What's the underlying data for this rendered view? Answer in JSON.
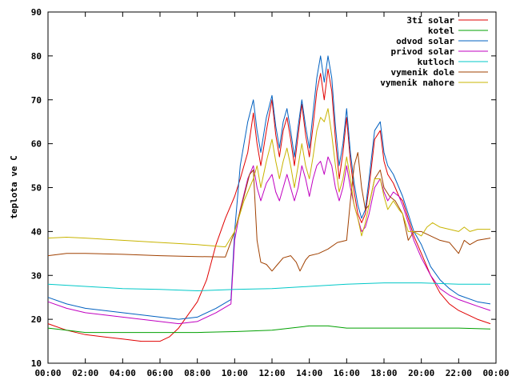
{
  "chart_data": {
    "type": "line",
    "ylabel": "teplota ve C",
    "xlabel": "",
    "title": "",
    "xlim": [
      0,
      24
    ],
    "ylim": [
      10,
      90
    ],
    "x_ticks": [
      "00:00",
      "02:00",
      "04:00",
      "06:00",
      "08:00",
      "10:00",
      "12:00",
      "14:00",
      "16:00",
      "18:00",
      "20:00",
      "22:00",
      "00:00"
    ],
    "y_ticks": [
      "10",
      "20",
      "30",
      "40",
      "50",
      "60",
      "70",
      "80",
      "90"
    ],
    "grid": false,
    "legend_position": "top-right",
    "series": [
      {
        "name": "3ti solar",
        "color": "#e00000",
        "points": [
          [
            0,
            19
          ],
          [
            1,
            17.5
          ],
          [
            2,
            16.5
          ],
          [
            3,
            16
          ],
          [
            4,
            15.5
          ],
          [
            5,
            15
          ],
          [
            6,
            15
          ],
          [
            6.5,
            16
          ],
          [
            7,
            18
          ],
          [
            7.5,
            21
          ],
          [
            8,
            24
          ],
          [
            8.5,
            29
          ],
          [
            9,
            37
          ],
          [
            9.5,
            43
          ],
          [
            10,
            48
          ],
          [
            10.3,
            52
          ],
          [
            10.7,
            58
          ],
          [
            11,
            67
          ],
          [
            11.2,
            60
          ],
          [
            11.4,
            55
          ],
          [
            11.7,
            63
          ],
          [
            12,
            70
          ],
          [
            12.2,
            62
          ],
          [
            12.4,
            57
          ],
          [
            12.6,
            63
          ],
          [
            12.8,
            66
          ],
          [
            13,
            61
          ],
          [
            13.2,
            55
          ],
          [
            13.4,
            62
          ],
          [
            13.6,
            69
          ],
          [
            13.8,
            62
          ],
          [
            14,
            57
          ],
          [
            14.2,
            64
          ],
          [
            14.4,
            72
          ],
          [
            14.6,
            76
          ],
          [
            14.8,
            70
          ],
          [
            15,
            77
          ],
          [
            15.2,
            72
          ],
          [
            15.4,
            61
          ],
          [
            15.6,
            52
          ],
          [
            15.8,
            58
          ],
          [
            16,
            66
          ],
          [
            16.2,
            56
          ],
          [
            16.4,
            49
          ],
          [
            16.6,
            44
          ],
          [
            16.8,
            42
          ],
          [
            17,
            44
          ],
          [
            17.2,
            50
          ],
          [
            17.5,
            61
          ],
          [
            17.8,
            63
          ],
          [
            18,
            56
          ],
          [
            18.2,
            53
          ],
          [
            18.5,
            51
          ],
          [
            18.8,
            48
          ],
          [
            19,
            47
          ],
          [
            19.3,
            43
          ],
          [
            19.6,
            39
          ],
          [
            20,
            35
          ],
          [
            20.5,
            30
          ],
          [
            21,
            26
          ],
          [
            21.5,
            23.5
          ],
          [
            22,
            22
          ],
          [
            23,
            20
          ],
          [
            23.7,
            19
          ]
        ]
      },
      {
        "name": "kotel",
        "color": "#00a000",
        "points": [
          [
            0,
            18
          ],
          [
            1,
            17.5
          ],
          [
            2,
            17
          ],
          [
            4,
            17
          ],
          [
            6,
            17
          ],
          [
            8,
            17
          ],
          [
            10,
            17.2
          ],
          [
            12,
            17.5
          ],
          [
            13,
            18
          ],
          [
            14,
            18.5
          ],
          [
            15,
            18.5
          ],
          [
            16,
            18
          ],
          [
            18,
            18
          ],
          [
            20,
            18
          ],
          [
            22,
            18
          ],
          [
            23.7,
            17.8
          ]
        ]
      },
      {
        "name": "odvod solar",
        "color": "#0060c0",
        "points": [
          [
            0,
            25
          ],
          [
            1,
            23.5
          ],
          [
            2,
            22.5
          ],
          [
            3,
            22
          ],
          [
            4,
            21.5
          ],
          [
            5,
            21
          ],
          [
            6,
            20.5
          ],
          [
            7,
            20
          ],
          [
            8,
            20.5
          ],
          [
            9,
            22.5
          ],
          [
            9.8,
            24.5
          ],
          [
            10,
            40
          ],
          [
            10.3,
            55
          ],
          [
            10.7,
            65
          ],
          [
            11,
            70
          ],
          [
            11.2,
            63
          ],
          [
            11.4,
            58
          ],
          [
            11.7,
            66
          ],
          [
            12,
            71
          ],
          [
            12.2,
            64
          ],
          [
            12.4,
            59
          ],
          [
            12.6,
            65
          ],
          [
            12.8,
            68
          ],
          [
            13,
            63
          ],
          [
            13.2,
            57
          ],
          [
            13.4,
            64
          ],
          [
            13.6,
            70
          ],
          [
            13.8,
            64
          ],
          [
            14,
            59
          ],
          [
            14.2,
            67
          ],
          [
            14.4,
            75
          ],
          [
            14.6,
            80
          ],
          [
            14.8,
            74
          ],
          [
            15,
            80
          ],
          [
            15.2,
            75
          ],
          [
            15.4,
            64
          ],
          [
            15.6,
            55
          ],
          [
            15.8,
            60
          ],
          [
            16,
            68
          ],
          [
            16.2,
            58
          ],
          [
            16.4,
            51
          ],
          [
            16.6,
            46
          ],
          [
            16.8,
            43
          ],
          [
            17,
            45
          ],
          [
            17.2,
            52
          ],
          [
            17.5,
            63
          ],
          [
            17.8,
            65
          ],
          [
            18,
            58
          ],
          [
            18.2,
            55
          ],
          [
            18.5,
            53
          ],
          [
            18.8,
            50
          ],
          [
            19,
            48
          ],
          [
            19.3,
            44
          ],
          [
            19.6,
            40
          ],
          [
            20,
            37
          ],
          [
            20.5,
            32
          ],
          [
            21,
            29
          ],
          [
            21.5,
            27
          ],
          [
            22,
            25.5
          ],
          [
            23,
            24
          ],
          [
            23.7,
            23.5
          ]
        ]
      },
      {
        "name": "privod solar",
        "color": "#c000c0",
        "points": [
          [
            0,
            24
          ],
          [
            1,
            22.5
          ],
          [
            2,
            21.5
          ],
          [
            3,
            21
          ],
          [
            4,
            20.5
          ],
          [
            5,
            20
          ],
          [
            6,
            19.5
          ],
          [
            7,
            19
          ],
          [
            8,
            19.5
          ],
          [
            9,
            21.5
          ],
          [
            9.8,
            23.5
          ],
          [
            10,
            38
          ],
          [
            10.3,
            45
          ],
          [
            10.7,
            52
          ],
          [
            11,
            55
          ],
          [
            11.2,
            50
          ],
          [
            11.4,
            47
          ],
          [
            11.7,
            51
          ],
          [
            12,
            53
          ],
          [
            12.2,
            49
          ],
          [
            12.4,
            47
          ],
          [
            12.6,
            50
          ],
          [
            12.8,
            53
          ],
          [
            13,
            50
          ],
          [
            13.2,
            47
          ],
          [
            13.4,
            50
          ],
          [
            13.6,
            55
          ],
          [
            13.8,
            52
          ],
          [
            14,
            48
          ],
          [
            14.2,
            52
          ],
          [
            14.4,
            55
          ],
          [
            14.6,
            56
          ],
          [
            14.8,
            53
          ],
          [
            15,
            57
          ],
          [
            15.2,
            55
          ],
          [
            15.4,
            50
          ],
          [
            15.6,
            47
          ],
          [
            15.8,
            50
          ],
          [
            16,
            55
          ],
          [
            16.2,
            50
          ],
          [
            16.4,
            46
          ],
          [
            16.6,
            43
          ],
          [
            16.8,
            40
          ],
          [
            17,
            41
          ],
          [
            17.2,
            44
          ],
          [
            17.5,
            50
          ],
          [
            17.8,
            52
          ],
          [
            18,
            49
          ],
          [
            18.2,
            47
          ],
          [
            18.5,
            49
          ],
          [
            18.8,
            48
          ],
          [
            19,
            46
          ],
          [
            19.3,
            42
          ],
          [
            19.6,
            38
          ],
          [
            20,
            34
          ],
          [
            20.5,
            30
          ],
          [
            21,
            27
          ],
          [
            21.5,
            25.5
          ],
          [
            22,
            24.5
          ],
          [
            23,
            23
          ],
          [
            23.7,
            22
          ]
        ]
      },
      {
        "name": "kutloch",
        "color": "#00c8c8",
        "points": [
          [
            0,
            28
          ],
          [
            2,
            27.5
          ],
          [
            4,
            27
          ],
          [
            6,
            26.8
          ],
          [
            8,
            26.5
          ],
          [
            10,
            26.8
          ],
          [
            12,
            27
          ],
          [
            14,
            27.5
          ],
          [
            16,
            28
          ],
          [
            18,
            28.3
          ],
          [
            20,
            28.3
          ],
          [
            22,
            28
          ],
          [
            23.7,
            28
          ]
        ]
      },
      {
        "name": "vymenik dole",
        "color": "#a04000",
        "points": [
          [
            0,
            34.5
          ],
          [
            1,
            35
          ],
          [
            2,
            35
          ],
          [
            4,
            34.8
          ],
          [
            6,
            34.5
          ],
          [
            8,
            34.3
          ],
          [
            9.5,
            34.2
          ],
          [
            10,
            40
          ],
          [
            10.5,
            48
          ],
          [
            10.8,
            53
          ],
          [
            11,
            54
          ],
          [
            11.2,
            38
          ],
          [
            11.4,
            33
          ],
          [
            11.7,
            32.5
          ],
          [
            12,
            31
          ],
          [
            12.3,
            32.5
          ],
          [
            12.6,
            34
          ],
          [
            13,
            34.5
          ],
          [
            13.3,
            33
          ],
          [
            13.5,
            31
          ],
          [
            13.8,
            33.5
          ],
          [
            14,
            34.5
          ],
          [
            14.5,
            35
          ],
          [
            15,
            36
          ],
          [
            15.5,
            37.5
          ],
          [
            16,
            38
          ],
          [
            16.2,
            47
          ],
          [
            16.4,
            55
          ],
          [
            16.6,
            58
          ],
          [
            16.8,
            50
          ],
          [
            17,
            45
          ],
          [
            17.2,
            46
          ],
          [
            17.5,
            52
          ],
          [
            17.8,
            54
          ],
          [
            18,
            50
          ],
          [
            18.3,
            48
          ],
          [
            18.6,
            47
          ],
          [
            19,
            44
          ],
          [
            19.3,
            38
          ],
          [
            19.6,
            40
          ],
          [
            20,
            40
          ],
          [
            20.5,
            39
          ],
          [
            21,
            38
          ],
          [
            21.5,
            37.5
          ],
          [
            22,
            35
          ],
          [
            22.3,
            38
          ],
          [
            22.6,
            37
          ],
          [
            23,
            38
          ],
          [
            23.7,
            38.5
          ]
        ]
      },
      {
        "name": "vymenik nahore",
        "color": "#c8b400",
        "points": [
          [
            0,
            38.5
          ],
          [
            1,
            38.7
          ],
          [
            2,
            38.5
          ],
          [
            4,
            38
          ],
          [
            6,
            37.5
          ],
          [
            8,
            37
          ],
          [
            9.5,
            36.5
          ],
          [
            10,
            40
          ],
          [
            10.5,
            47
          ],
          [
            11,
            52
          ],
          [
            11.2,
            55
          ],
          [
            11.4,
            50
          ],
          [
            11.7,
            56
          ],
          [
            12,
            61
          ],
          [
            12.2,
            56
          ],
          [
            12.4,
            52
          ],
          [
            12.6,
            56
          ],
          [
            12.8,
            59
          ],
          [
            13,
            55
          ],
          [
            13.2,
            50
          ],
          [
            13.4,
            55
          ],
          [
            13.6,
            60
          ],
          [
            13.8,
            55
          ],
          [
            14,
            52
          ],
          [
            14.2,
            57
          ],
          [
            14.4,
            63
          ],
          [
            14.6,
            66
          ],
          [
            14.8,
            65
          ],
          [
            15,
            68
          ],
          [
            15.2,
            62
          ],
          [
            15.4,
            55
          ],
          [
            15.6,
            49
          ],
          [
            15.8,
            52
          ],
          [
            16,
            57
          ],
          [
            16.2,
            52
          ],
          [
            16.4,
            46
          ],
          [
            16.6,
            43
          ],
          [
            16.8,
            39
          ],
          [
            17,
            42
          ],
          [
            17.2,
            46
          ],
          [
            17.5,
            52
          ],
          [
            17.8,
            52
          ],
          [
            18,
            48
          ],
          [
            18.2,
            45
          ],
          [
            18.5,
            47
          ],
          [
            18.8,
            45
          ],
          [
            19,
            44
          ],
          [
            19.3,
            40
          ],
          [
            19.6,
            40
          ],
          [
            20,
            39
          ],
          [
            20.3,
            41
          ],
          [
            20.6,
            42
          ],
          [
            21,
            41
          ],
          [
            21.5,
            40.5
          ],
          [
            22,
            40
          ],
          [
            22.3,
            41
          ],
          [
            22.6,
            40
          ],
          [
            23,
            40.5
          ],
          [
            23.7,
            40.5
          ]
        ]
      }
    ]
  }
}
